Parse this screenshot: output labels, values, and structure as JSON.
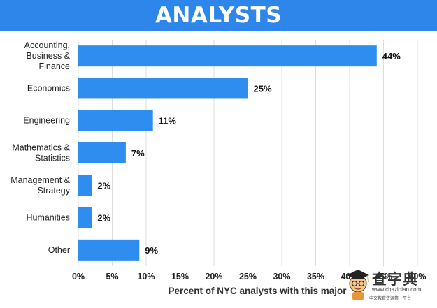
{
  "colors": {
    "bar": "#2f8df0",
    "banner": "#2f86ea",
    "grid": "#dddddd"
  },
  "chart_data": {
    "type": "bar",
    "orientation": "horizontal",
    "title": "ANALYSTS",
    "xlabel": "Percent of NYC analysts with this major",
    "ylabel": "",
    "xlim": [
      0,
      50
    ],
    "grid": true,
    "x_tick_labels": [
      "0%",
      "5%",
      "10%",
      "15%",
      "20%",
      "25%",
      "30%",
      "35%",
      "40%",
      "45%",
      "50%"
    ],
    "categories": [
      [
        "Accounting,",
        "Business &",
        "Finance"
      ],
      [
        "Economics"
      ],
      [
        "Engineering"
      ],
      [
        "Mathematics &",
        "Statistics"
      ],
      [
        "Management &",
        "Strategy"
      ],
      [
        "Humanities"
      ],
      [
        "Other"
      ]
    ],
    "values": [
      44,
      25,
      11,
      7,
      2,
      2,
      9
    ],
    "data_labels": [
      "44%",
      "25%",
      "11%",
      "7%",
      "2%",
      "2%",
      "9%"
    ]
  },
  "watermark": {
    "name": "查字典",
    "url": "www.chazidian.com",
    "tagline": "中文教育资源第一平台"
  }
}
